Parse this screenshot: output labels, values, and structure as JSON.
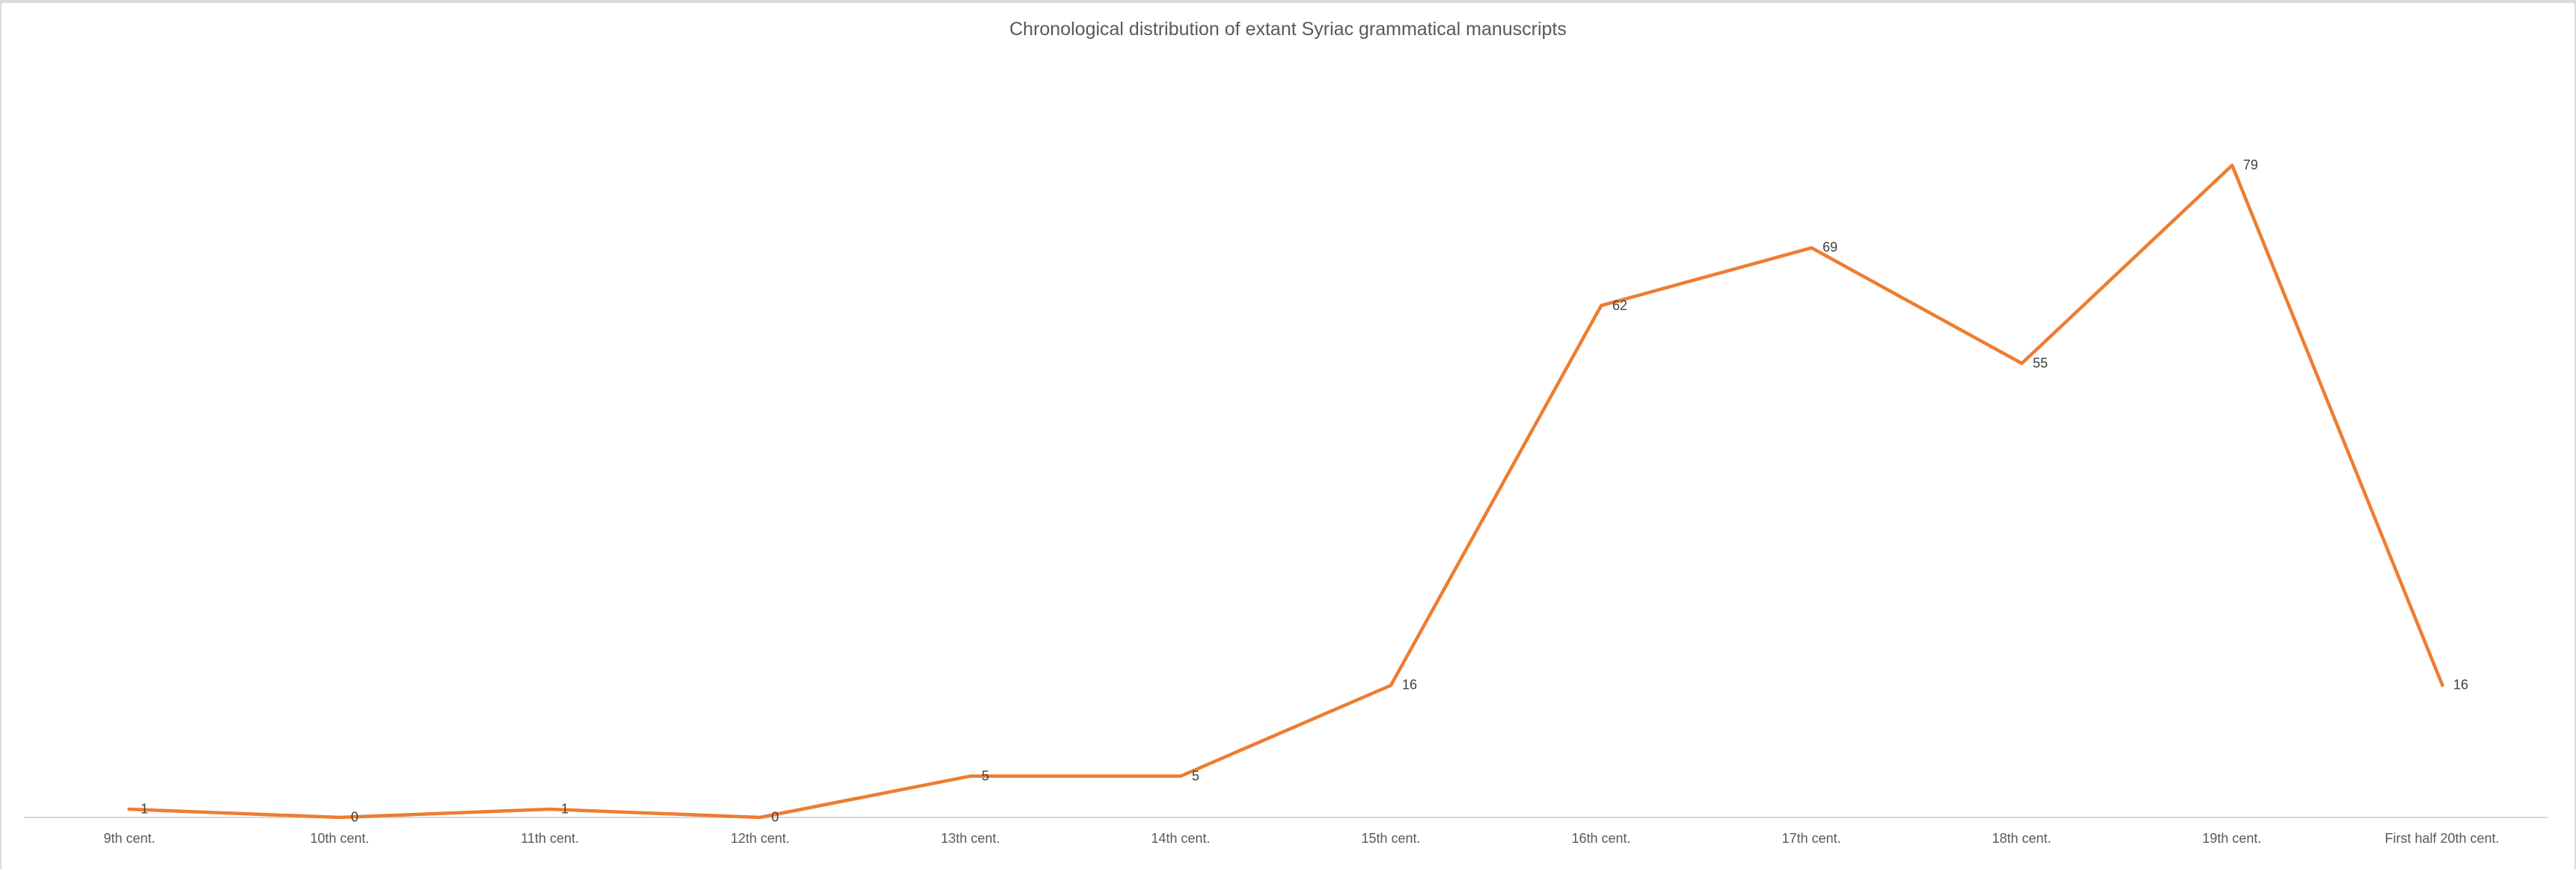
{
  "chart_data": {
    "type": "line",
    "title": "Chronological distribution of extant Syriac grammatical manuscripts",
    "categories": [
      "9th cent.",
      "10th cent.",
      "11th cent.",
      "12th cent.",
      "13th cent.",
      "14th cent.",
      "15th cent.",
      "16th cent.",
      "17th cent.",
      "18th cent.",
      "19th cent.",
      "First half 20th cent."
    ],
    "values": [
      1,
      0,
      1,
      0,
      5,
      5,
      16,
      62,
      69,
      55,
      79,
      16
    ],
    "data_labels": [
      "1",
      "0",
      "1",
      "0",
      "5",
      "5",
      "16",
      "62",
      "69",
      "55",
      "79",
      "16"
    ],
    "xlabel": "",
    "ylabel": "",
    "ylim": [
      0,
      79
    ],
    "y_axis_visible": false,
    "gridlines": false,
    "legend": "none",
    "colors": {
      "line": "#ED7D31",
      "axis_line": "#D9D9D9",
      "title_text": "#595959",
      "axis_label_text": "#595959",
      "data_label_text": "#404040",
      "frame_border": "#DBDBDB"
    }
  }
}
